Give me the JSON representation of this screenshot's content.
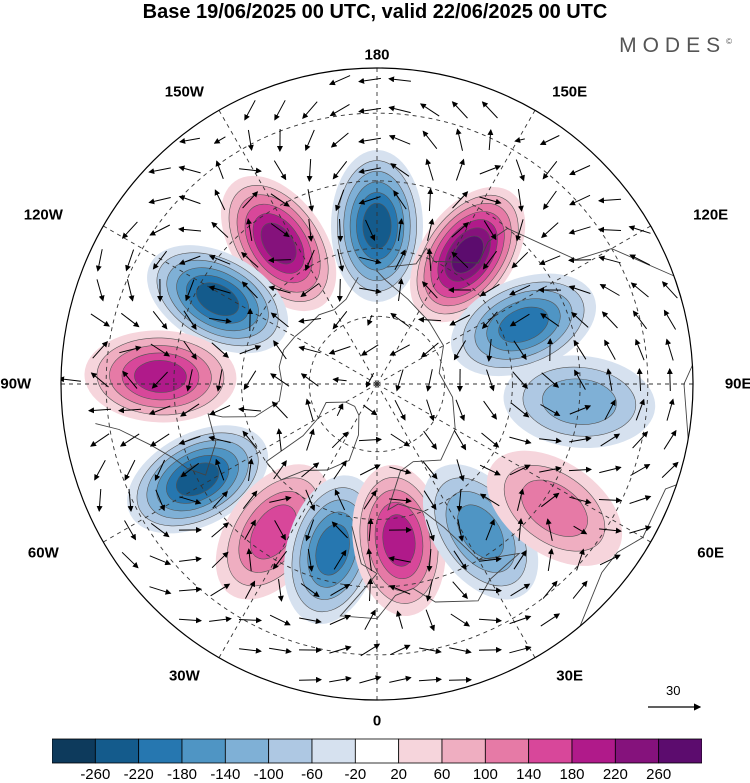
{
  "title": "Base 19/06/2025 00 UTC, valid 22/06/2025 00 UTC",
  "brand": "MODES",
  "brand_mark": "©",
  "longitude_labels": [
    {
      "text": "180",
      "lon": 180
    },
    {
      "text": "150E",
      "lon": 150
    },
    {
      "text": "120E",
      "lon": 120
    },
    {
      "text": "90E",
      "lon": 90
    },
    {
      "text": "60E",
      "lon": 60
    },
    {
      "text": "30E",
      "lon": 30
    },
    {
      "text": "0",
      "lon": 0
    },
    {
      "text": "30W",
      "lon": -30
    },
    {
      "text": "60W",
      "lon": -60
    },
    {
      "text": "90W",
      "lon": -90
    },
    {
      "text": "120W",
      "lon": -120
    },
    {
      "text": "150W",
      "lon": -150
    }
  ],
  "reference_vector_label": "30",
  "colorbar": {
    "ticks": [
      "-260",
      "-220",
      "-180",
      "-140",
      "-100",
      "-60",
      "-20",
      "20",
      "60",
      "100",
      "140",
      "180",
      "220",
      "260"
    ],
    "colors": [
      "#0d3a5c",
      "#145b8c",
      "#2677b0",
      "#4f95c4",
      "#7fb0d6",
      "#aec8e3",
      "#d6e1ef",
      "#ffffff",
      "#f6d5dc",
      "#efaec1",
      "#e67aa6",
      "#d8479a",
      "#b01a8a",
      "#85127c",
      "#5c0c6e"
    ]
  },
  "anomalies": [
    {
      "lon": 180,
      "lat": 55,
      "value": -230
    },
    {
      "lon": 145,
      "lat": 55,
      "value": 250
    },
    {
      "lon": 112,
      "lat": 55,
      "value": -170
    },
    {
      "lon": 85,
      "lat": 45,
      "value": -90
    },
    {
      "lon": -145,
      "lat": 52,
      "value": 210
    },
    {
      "lon": -118,
      "lat": 50,
      "value": -200
    },
    {
      "lon": -92,
      "lat": 42,
      "value": 170
    },
    {
      "lon": -62,
      "lat": 45,
      "value": -230
    },
    {
      "lon": -35,
      "lat": 50,
      "value": 150
    },
    {
      "lon": -15,
      "lat": 52,
      "value": -170
    },
    {
      "lon": 8,
      "lat": 55,
      "value": 180
    },
    {
      "lon": 35,
      "lat": 50,
      "value": -130
    },
    {
      "lon": 55,
      "lat": 42,
      "value": 80
    }
  ]
}
